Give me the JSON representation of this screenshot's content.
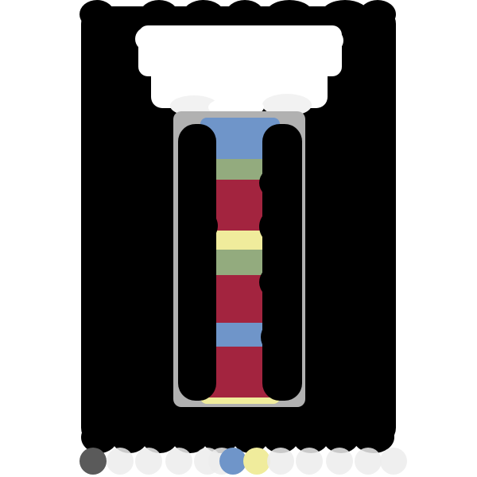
{
  "artwork": {
    "subject": "painted-column",
    "colors": {
      "background": "#ffffff",
      "frame": "#000000",
      "capital": "#ffffff",
      "shaft_edge": "#a8a8a8",
      "crimson": "#a3243f",
      "sage": "#93ab7e",
      "butter": "#f0ec9c",
      "sky": "#6f95c9",
      "ash": "#5a5a5a",
      "fog": "#ececec"
    },
    "bands": [
      {
        "color_key": "sky"
      },
      {
        "color_key": "sage"
      },
      {
        "color_key": "crimson"
      },
      {
        "color_key": "butter"
      },
      {
        "color_key": "sage"
      },
      {
        "color_key": "crimson"
      },
      {
        "color_key": "sky"
      },
      {
        "color_key": "crimson"
      },
      {
        "color_key": "butter"
      }
    ],
    "bottom_dots": [
      {
        "color_key": "ash"
      },
      {
        "color_key": "fog"
      },
      {
        "color_key": "fog"
      },
      {
        "color_key": "fog"
      },
      {
        "color_key": "fog"
      },
      {
        "color_key": "fog"
      },
      {
        "color_key": "sky"
      },
      {
        "color_key": "butter"
      },
      {
        "color_key": "fog"
      },
      {
        "color_key": "fog"
      },
      {
        "color_key": "fog"
      },
      {
        "color_key": "fog"
      },
      {
        "color_key": "fog"
      }
    ]
  }
}
